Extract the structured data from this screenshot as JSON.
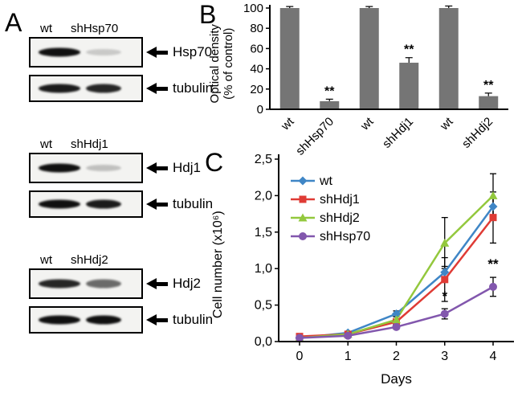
{
  "figure": {
    "background": "#ffffff"
  },
  "panels": {
    "a": {
      "label": "A",
      "groups": [
        {
          "lane_labels": [
            "wt",
            "shHsp70"
          ],
          "target": "Hsp70",
          "control": "tubulin",
          "target_bands": [
            1,
            0.18
          ],
          "control_bands": [
            0.95,
            0.9
          ]
        },
        {
          "lane_labels": [
            "wt",
            "shHdj1"
          ],
          "target": "Hdj1",
          "control": "tubulin",
          "target_bands": [
            1,
            0.22
          ],
          "control_bands": [
            1,
            0.95
          ]
        },
        {
          "lane_labels": [
            "wt",
            "shHdj2"
          ],
          "target": "Hdj2",
          "control": "tubulin",
          "target_bands": [
            0.9,
            0.6
          ],
          "control_bands": [
            1,
            1
          ]
        }
      ]
    },
    "b": {
      "label": "B"
    },
    "c": {
      "label": "C"
    }
  },
  "chart_data": [
    {
      "type": "bar",
      "panel": "B",
      "categories": [
        "wt",
        "shHsp70",
        "wt",
        "shHdj1",
        "wt",
        "shHdj2"
      ],
      "values": [
        100,
        8,
        100,
        46,
        100,
        13
      ],
      "errors": [
        1.5,
        2,
        1.5,
        5,
        2,
        3
      ],
      "annotations": [
        "",
        "**",
        "",
        "**",
        "",
        "**"
      ],
      "title": "",
      "xlabel": "",
      "ylabel": "Optical density\n(% of control)",
      "ylim": [
        0,
        100
      ],
      "yticks": [
        0,
        20,
        40,
        60,
        80,
        100
      ],
      "grid": false,
      "bar_color": "#757575"
    },
    {
      "type": "line",
      "panel": "C",
      "title": "",
      "xlabel": "Days",
      "ylabel": "Cell number (x10⁶)",
      "x": [
        0,
        1,
        2,
        3,
        4
      ],
      "xlim": [
        0,
        4
      ],
      "ylim": [
        0,
        2.5
      ],
      "yticks": [
        {
          "v": 0,
          "label": "0,0"
        },
        {
          "v": 0.5,
          "label": "0,5"
        },
        {
          "v": 1,
          "label": "1,0"
        },
        {
          "v": 1.5,
          "label": "1,5"
        },
        {
          "v": 2,
          "label": "2,0"
        },
        {
          "v": 2.5,
          "label": "2,5"
        }
      ],
      "grid": false,
      "legend_position": "top-left",
      "series": [
        {
          "name": "wt",
          "color": "#3f86c6",
          "marker": "diamond",
          "values": [
            0.05,
            0.12,
            0.38,
            0.95,
            1.85
          ],
          "errors": [
            0.02,
            0.02,
            0.04,
            0.08,
            0.12
          ]
        },
        {
          "name": "shHdj1",
          "color": "#df3b35",
          "marker": "square",
          "values": [
            0.07,
            0.1,
            0.27,
            0.85,
            1.7
          ],
          "errors": [
            0.02,
            0.02,
            0.04,
            0.3,
            0.35
          ]
        },
        {
          "name": "shHdj2",
          "color": "#93c83d",
          "marker": "triangle",
          "values": [
            0.05,
            0.1,
            0.3,
            1.35,
            2.0
          ],
          "errors": [
            0.02,
            0.02,
            0.04,
            0.35,
            0.3
          ]
        },
        {
          "name": "shHsp70",
          "color": "#8257ad",
          "marker": "circle",
          "values": [
            0.05,
            0.08,
            0.2,
            0.38,
            0.75
          ],
          "errors": [
            0.02,
            0.02,
            0.03,
            0.07,
            0.13
          ]
        }
      ],
      "annotations": [
        {
          "x": 3,
          "y": 0.56,
          "text": "*"
        },
        {
          "x": 4,
          "y": 1.0,
          "text": "**"
        }
      ]
    }
  ]
}
